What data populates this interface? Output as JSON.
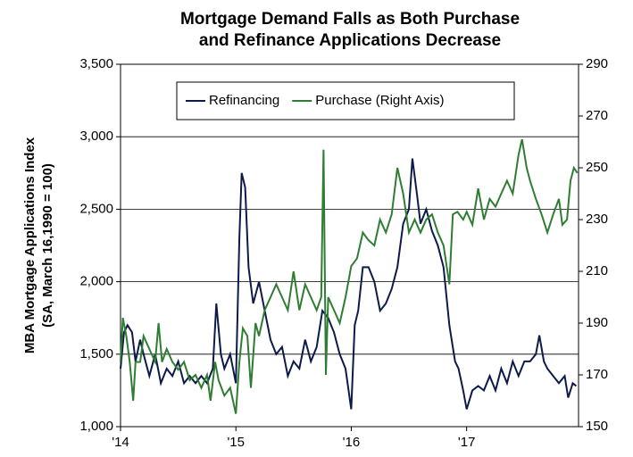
{
  "chart_data": {
    "type": "line",
    "title": [
      "Mortgage Demand Falls as Both Purchase",
      "and Refinance Applications Decrease"
    ],
    "ylabel": [
      "MBA Mortgage Applications Index",
      "(SA, March 16,1990 = 100)"
    ],
    "xlim": [
      2014,
      2017.97
    ],
    "xticks": [
      {
        "value": 2014,
        "label": "'14"
      },
      {
        "value": 2015,
        "label": "'15"
      },
      {
        "value": 2016,
        "label": "'16"
      },
      {
        "value": 2017,
        "label": "'17"
      }
    ],
    "ylim": [
      1000,
      3500
    ],
    "yticks": [
      {
        "value": 1000,
        "label": "1,000"
      },
      {
        "value": 1500,
        "label": "1,500"
      },
      {
        "value": 2000,
        "label": "2,000"
      },
      {
        "value": 2500,
        "label": "2,500"
      },
      {
        "value": 3000,
        "label": "3,000"
      },
      {
        "value": 3500,
        "label": "3,500"
      }
    ],
    "y2lim": [
      150,
      290
    ],
    "y2ticks": [
      150,
      170,
      190,
      210,
      230,
      250,
      270,
      290
    ],
    "grid": true,
    "legend": "top",
    "series": [
      {
        "name": "Refinancing",
        "color": "#0d1a4a",
        "x": [
          2014.0,
          2014.03,
          2014.06,
          2014.1,
          2014.13,
          2014.17,
          2014.2,
          2014.25,
          2014.3,
          2014.35,
          2014.4,
          2014.45,
          2014.5,
          2014.55,
          2014.6,
          2014.65,
          2014.7,
          2014.75,
          2014.8,
          2014.83,
          2014.87,
          2014.9,
          2014.95,
          2015.0,
          2015.03,
          2015.05,
          2015.08,
          2015.11,
          2015.15,
          2015.2,
          2015.25,
          2015.3,
          2015.35,
          2015.4,
          2015.45,
          2015.5,
          2015.55,
          2015.6,
          2015.65,
          2015.7,
          2015.75,
          2015.8,
          2015.85,
          2015.9,
          2015.95,
          2016.0,
          2016.03,
          2016.06,
          2016.1,
          2016.15,
          2016.2,
          2016.25,
          2016.3,
          2016.35,
          2016.4,
          2016.45,
          2016.5,
          2016.53,
          2016.57,
          2016.6,
          2016.65,
          2016.7,
          2016.75,
          2016.8,
          2016.85,
          2016.9,
          2016.93,
          2016.97,
          2017.0,
          2017.05,
          2017.1,
          2017.15,
          2017.2,
          2017.25,
          2017.3,
          2017.35,
          2017.4,
          2017.45,
          2017.5,
          2017.55,
          2017.6,
          2017.63,
          2017.67,
          2017.7,
          2017.75,
          2017.8,
          2017.85,
          2017.88,
          2017.92,
          2017.95
        ],
        "values": [
          1400,
          1650,
          1700,
          1650,
          1450,
          1600,
          1500,
          1350,
          1500,
          1300,
          1400,
          1350,
          1450,
          1300,
          1350,
          1300,
          1350,
          1300,
          1400,
          1850,
          1500,
          1400,
          1500,
          1300,
          2300,
          2750,
          2650,
          2100,
          1850,
          2000,
          1800,
          1600,
          1500,
          1550,
          1350,
          1450,
          1400,
          1600,
          1450,
          1550,
          1800,
          1750,
          1650,
          1500,
          1400,
          1120,
          1700,
          1800,
          2100,
          2100,
          2000,
          1800,
          1850,
          1950,
          2100,
          2400,
          2500,
          2850,
          2600,
          2400,
          2500,
          2350,
          2250,
          2100,
          1700,
          1450,
          1400,
          1250,
          1120,
          1250,
          1280,
          1250,
          1350,
          1250,
          1400,
          1300,
          1450,
          1350,
          1450,
          1450,
          1500,
          1630,
          1450,
          1400,
          1350,
          1300,
          1350,
          1200,
          1300,
          1280
        ]
      },
      {
        "name": "Purchase (Right Axis)",
        "color": "#2e7d32",
        "axis": "y2",
        "x": [
          2014.0,
          2014.02,
          2014.05,
          2014.08,
          2014.11,
          2014.13,
          2014.17,
          2014.2,
          2014.25,
          2014.3,
          2014.33,
          2014.36,
          2014.4,
          2014.45,
          2014.5,
          2014.55,
          2014.6,
          2014.65,
          2014.7,
          2014.75,
          2014.78,
          2014.82,
          2014.85,
          2014.9,
          2014.95,
          2015.0,
          2015.03,
          2015.06,
          2015.1,
          2015.13,
          2015.17,
          2015.2,
          2015.25,
          2015.3,
          2015.35,
          2015.4,
          2015.45,
          2015.5,
          2015.55,
          2015.6,
          2015.65,
          2015.7,
          2015.74,
          2015.76,
          2015.78,
          2015.8,
          2015.85,
          2015.9,
          2015.95,
          2016.0,
          2016.05,
          2016.1,
          2016.15,
          2016.2,
          2016.25,
          2016.3,
          2016.35,
          2016.4,
          2016.45,
          2016.5,
          2016.55,
          2016.6,
          2016.65,
          2016.7,
          2016.75,
          2016.8,
          2016.85,
          2016.88,
          2016.92,
          2016.97,
          2017.0,
          2017.05,
          2017.1,
          2017.15,
          2017.2,
          2017.25,
          2017.3,
          2017.35,
          2017.4,
          2017.45,
          2017.48,
          2017.52,
          2017.55,
          2017.6,
          2017.65,
          2017.7,
          2017.75,
          2017.8,
          2017.83,
          2017.87,
          2017.9,
          2017.93,
          2017.96
        ],
        "values": [
          175,
          192,
          185,
          175,
          160,
          175,
          175,
          185,
          180,
          175,
          190,
          175,
          180,
          175,
          172,
          175,
          168,
          170,
          165,
          170,
          160,
          175,
          168,
          162,
          165,
          155,
          175,
          188,
          185,
          165,
          190,
          185,
          195,
          200,
          205,
          200,
          195,
          210,
          195,
          205,
          200,
          195,
          200,
          257,
          170,
          200,
          195,
          190,
          200,
          212,
          215,
          225,
          222,
          220,
          230,
          225,
          232,
          250,
          240,
          225,
          230,
          225,
          230,
          232,
          225,
          220,
          205,
          232,
          233,
          230,
          233,
          228,
          242,
          230,
          238,
          235,
          240,
          245,
          240,
          255,
          261,
          250,
          245,
          238,
          232,
          225,
          232,
          238,
          228,
          230,
          245,
          250,
          248
        ]
      }
    ]
  }
}
